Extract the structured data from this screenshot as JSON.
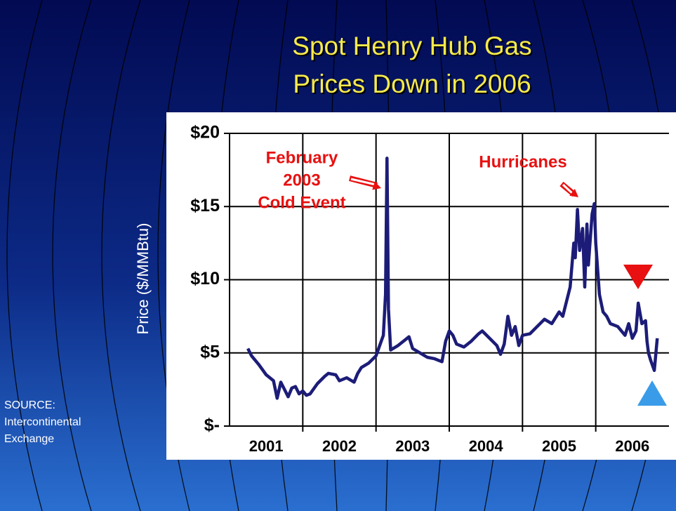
{
  "chart_data": {
    "type": "line",
    "title": [
      "Spot Henry Hub Gas",
      "Prices Down in 2006"
    ],
    "y_label": "Price ($/MMBtu)",
    "source": [
      "SOURCE:",
      "Intercontinental",
      "Exchange"
    ],
    "annotations": [
      [
        "February",
        "2003",
        "Cold Event"
      ],
      [
        "Hurricanes"
      ]
    ],
    "x": [
      2001.25,
      2001.3,
      2001.4,
      2001.5,
      2001.6,
      2001.65,
      2001.7,
      2001.75,
      2001.8,
      2001.85,
      2001.9,
      2001.95,
      2002.0,
      2002.05,
      2002.1,
      2002.2,
      2002.3,
      2002.35,
      2002.45,
      2002.5,
      2002.6,
      2002.7,
      2002.75,
      2002.8,
      2002.9,
      2003.0,
      2003.05,
      2003.1,
      2003.13,
      2003.15,
      2003.17,
      2003.2,
      2003.3,
      2003.4,
      2003.45,
      2003.5,
      2003.6,
      2003.7,
      2003.8,
      2003.9,
      2003.95,
      2004.0,
      2004.05,
      2004.1,
      2004.2,
      2004.3,
      2004.4,
      2004.45,
      2004.55,
      2004.65,
      2004.7,
      2004.75,
      2004.8,
      2004.85,
      2004.9,
      2004.95,
      2005.0,
      2005.1,
      2005.2,
      2005.3,
      2005.4,
      2005.5,
      2005.55,
      2005.65,
      2005.7,
      2005.72,
      2005.75,
      2005.78,
      2005.82,
      2005.85,
      2005.88,
      2005.9,
      2005.95,
      2005.98,
      2006.0,
      2006.05,
      2006.1,
      2006.15,
      2006.2,
      2006.3,
      2006.4,
      2006.45,
      2006.5,
      2006.55,
      2006.58,
      2006.63,
      2006.68,
      2006.7,
      2006.72,
      2006.75,
      2006.8,
      2006.84
    ],
    "series": [
      {
        "color": "#1c1c78",
        "values": [
          5.3,
          4.8,
          4.2,
          3.5,
          3.1,
          1.9,
          3.0,
          2.5,
          2.0,
          2.6,
          2.7,
          2.2,
          2.4,
          2.1,
          2.2,
          2.9,
          3.4,
          3.6,
          3.5,
          3.1,
          3.3,
          3.0,
          3.6,
          4.0,
          4.3,
          4.8,
          5.5,
          6.2,
          9.0,
          18.3,
          8.0,
          5.2,
          5.5,
          5.9,
          6.1,
          5.3,
          5.0,
          4.7,
          4.6,
          4.4,
          5.8,
          6.5,
          6.2,
          5.6,
          5.4,
          5.8,
          6.3,
          6.5,
          6.0,
          5.5,
          4.9,
          5.6,
          7.5,
          6.2,
          6.8,
          5.5,
          6.2,
          6.3,
          6.8,
          7.3,
          7.0,
          7.8,
          7.5,
          9.5,
          12.5,
          11.5,
          14.8,
          12.0,
          13.5,
          9.5,
          13.8,
          11.0,
          14.5,
          15.2,
          12.5,
          9.0,
          7.8,
          7.5,
          7.0,
          6.8,
          6.2,
          7.0,
          6.0,
          6.5,
          8.4,
          7.0,
          7.2,
          5.8,
          5.0,
          4.5,
          3.8,
          6.0
        ]
      }
    ],
    "xlim": [
      2001,
      2007
    ],
    "xticks": [
      {
        "value": 2001.5,
        "label": "2001"
      },
      {
        "value": 2002.5,
        "label": "2002"
      },
      {
        "value": 2003.5,
        "label": "2003"
      },
      {
        "value": 2004.5,
        "label": "2004"
      },
      {
        "value": 2005.5,
        "label": "2005"
      },
      {
        "value": 2006.5,
        "label": "2006"
      }
    ],
    "xgrid": [
      2002,
      2003,
      2004,
      2005,
      2006
    ],
    "ylim": [
      0,
      20
    ],
    "yticks": [
      {
        "value": 0,
        "label": "$-"
      },
      {
        "value": 5,
        "label": "$5"
      },
      {
        "value": 10,
        "label": "$10"
      },
      {
        "value": 15,
        "label": "$15"
      },
      {
        "value": 20,
        "label": "$20"
      }
    ],
    "grid": true
  }
}
